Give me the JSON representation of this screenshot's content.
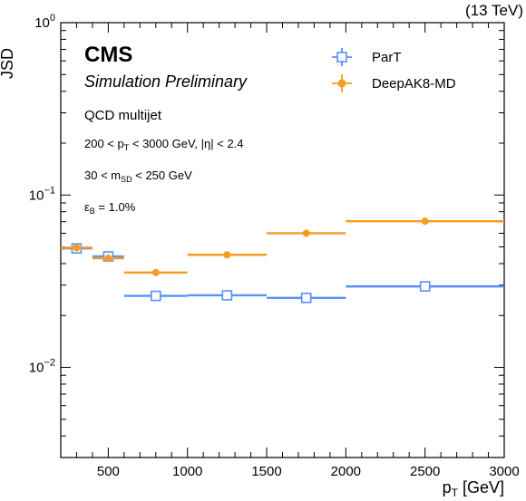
{
  "chart_data": {
    "type": "scatter",
    "x_axis": {
      "label_main": "p",
      "label_sub": "T",
      "label_unit": "[GeV]",
      "range": [
        200,
        3000
      ],
      "ticks": [
        500,
        1000,
        1500,
        2000,
        2500,
        3000
      ],
      "tick_labels": [
        "500",
        "1000",
        "1500",
        "2000",
        "2500",
        "3000"
      ]
    },
    "y_axis": {
      "label": "JSD",
      "scale": "log",
      "range": [
        0.003,
        1
      ],
      "ticks": [
        {
          "value": 1,
          "base": "10",
          "exp": "0"
        },
        {
          "value": 0.1,
          "base": "10",
          "exp": "−1"
        },
        {
          "value": 0.01,
          "base": "10",
          "exp": "−2"
        }
      ]
    },
    "grid": false,
    "legend_position": "top-right",
    "series": [
      {
        "name": "ParT",
        "color": "#5790fc",
        "marker": "open-square",
        "points": [
          {
            "x": 300,
            "xlow": 200,
            "xhigh": 400,
            "y": 0.049
          },
          {
            "x": 500,
            "xlow": 400,
            "xhigh": 600,
            "y": 0.044
          },
          {
            "x": 800,
            "xlow": 600,
            "xhigh": 1000,
            "y": 0.026
          },
          {
            "x": 1250,
            "xlow": 1000,
            "xhigh": 1500,
            "y": 0.0262
          },
          {
            "x": 1750,
            "xlow": 1500,
            "xhigh": 2000,
            "y": 0.0253
          },
          {
            "x": 2500,
            "xlow": 2000,
            "xhigh": 3000,
            "y": 0.0295
          }
        ]
      },
      {
        "name": "DeepAK8-MD",
        "color": "#f89c20",
        "marker": "filled-circle",
        "points": [
          {
            "x": 300,
            "xlow": 200,
            "xhigh": 400,
            "y": 0.0495
          },
          {
            "x": 500,
            "xlow": 400,
            "xhigh": 600,
            "y": 0.043
          },
          {
            "x": 800,
            "xlow": 600,
            "xhigh": 1000,
            "y": 0.0355
          },
          {
            "x": 1250,
            "xlow": 1000,
            "xhigh": 1500,
            "y": 0.045
          },
          {
            "x": 1750,
            "xlow": 1500,
            "xhigh": 2000,
            "y": 0.06
          },
          {
            "x": 2500,
            "xlow": 2000,
            "xhigh": 3000,
            "y": 0.0705
          }
        ]
      }
    ],
    "annotations": {
      "experiment": "CMS",
      "subtitle": "Simulation Preliminary",
      "energy": "(13 TeV)",
      "process": "QCD multijet",
      "pt_cut": {
        "a": "200 < p",
        "sub": "T",
        "b": " < 3000 GeV, |η| < 2.4"
      },
      "msd_cut": {
        "a": "30 < m",
        "sub": "SD",
        "b": " < 250 GeV"
      },
      "eff": {
        "a": "ε",
        "sub": "B",
        "b": " = 1.0%"
      }
    }
  }
}
